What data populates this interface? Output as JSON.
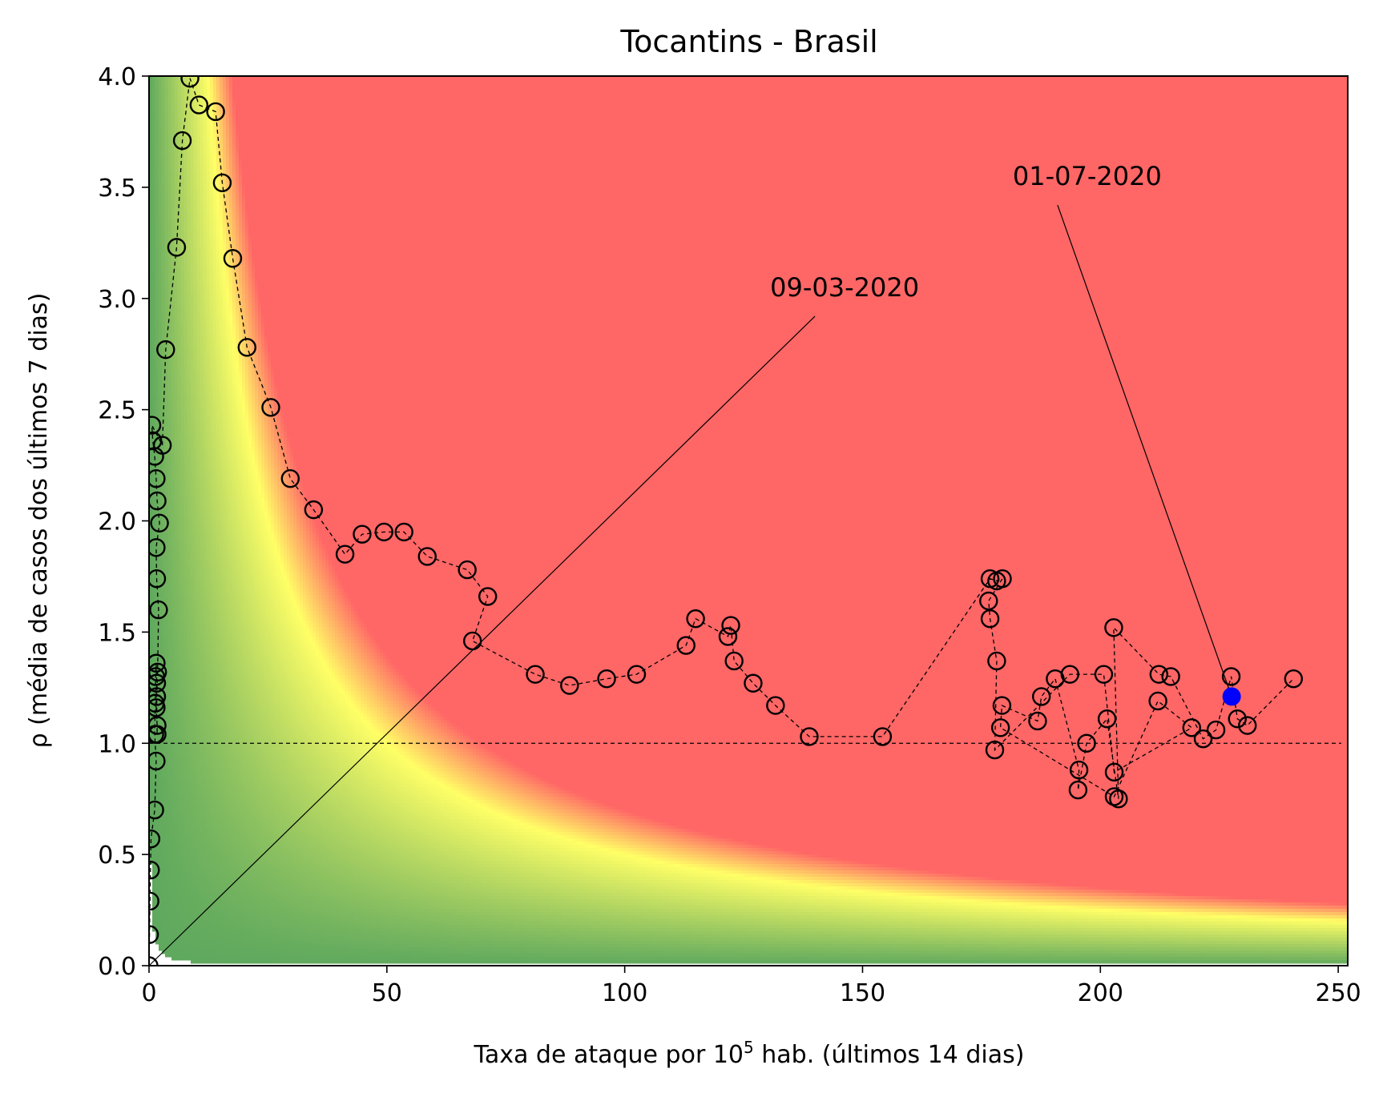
{
  "chart_data": {
    "type": "scatter",
    "title": "Tocantins - Brasil",
    "xlabel_prefix": "Taxa de ataque por 10",
    "xlabel_sup": "5",
    "xlabel_suffix": " hab. (últimos 14 dias)",
    "ylabel": "ρ (média de casos dos últimos 7 dias)",
    "xlim": [
      0,
      252
    ],
    "ylim": [
      0,
      4
    ],
    "xticks": [
      0,
      50,
      100,
      150,
      200,
      250
    ],
    "yticks": [
      0.0,
      0.5,
      1.0,
      1.5,
      2.0,
      2.5,
      3.0,
      3.5,
      4.0
    ],
    "xtick_labels": [
      "0",
      "50",
      "100",
      "150",
      "200",
      "250"
    ],
    "ytick_labels": [
      "0.0",
      "0.5",
      "1.0",
      "1.5",
      "2.0",
      "2.5",
      "3.0",
      "3.5",
      "4.0"
    ],
    "reference_line_y": 1.0,
    "background": {
      "description": "risk gradient green-yellow-red by attack rate x rho",
      "colors": {
        "low": "#5ea85e",
        "mid": "#ffff66",
        "high": "#ff6666"
      }
    },
    "series": [
      {
        "marker": "open-circle",
        "line": "dashed",
        "color": "#000000",
        "points": [
          [
            0.0,
            0.0
          ],
          [
            0.1,
            0.14
          ],
          [
            0.2,
            0.29
          ],
          [
            0.3,
            0.43
          ],
          [
            0.4,
            0.57
          ],
          [
            1.2,
            0.7
          ],
          [
            1.5,
            0.92
          ],
          [
            1.2,
            1.04
          ],
          [
            1.3,
            1.18
          ],
          [
            1.4,
            1.3
          ],
          [
            1.5,
            1.36
          ],
          [
            1.6,
            1.27
          ],
          [
            1.5,
            1.16
          ],
          [
            1.7,
            1.08
          ],
          [
            1.7,
            1.04
          ],
          [
            1.6,
            1.21
          ],
          [
            1.8,
            1.32
          ],
          [
            2.0,
            1.6
          ],
          [
            1.6,
            1.74
          ],
          [
            1.5,
            1.88
          ],
          [
            2.2,
            1.99
          ],
          [
            1.7,
            2.09
          ],
          [
            1.5,
            2.19
          ],
          [
            1.2,
            2.29
          ],
          [
            0.8,
            2.36
          ],
          [
            0.6,
            2.43
          ],
          [
            2.8,
            2.34
          ],
          [
            3.5,
            2.77
          ],
          [
            5.8,
            3.23
          ],
          [
            7.0,
            3.71
          ],
          [
            8.6,
            3.99
          ],
          [
            10.5,
            3.87
          ],
          [
            14.0,
            3.84
          ],
          [
            15.4,
            3.52
          ],
          [
            17.6,
            3.18
          ],
          [
            20.6,
            2.78
          ],
          [
            25.6,
            2.51
          ],
          [
            29.7,
            2.19
          ],
          [
            34.6,
            2.05
          ],
          [
            41.2,
            1.85
          ],
          [
            44.8,
            1.94
          ],
          [
            49.4,
            1.95
          ],
          [
            53.6,
            1.95
          ],
          [
            58.5,
            1.84
          ],
          [
            66.9,
            1.78
          ],
          [
            71.2,
            1.66
          ],
          [
            68.0,
            1.46
          ],
          [
            81.2,
            1.31
          ],
          [
            88.4,
            1.26
          ],
          [
            96.2,
            1.29
          ],
          [
            102.5,
            1.31
          ],
          [
            112.9,
            1.44
          ],
          [
            114.9,
            1.56
          ],
          [
            121.7,
            1.48
          ],
          [
            122.3,
            1.53
          ],
          [
            123.0,
            1.37
          ],
          [
            127.0,
            1.27
          ],
          [
            131.7,
            1.17
          ],
          [
            138.8,
            1.03
          ],
          [
            154.2,
            1.03
          ],
          [
            176.8,
            1.74
          ],
          [
            178.2,
            1.73
          ],
          [
            179.4,
            1.74
          ],
          [
            176.5,
            1.64
          ],
          [
            176.8,
            1.56
          ],
          [
            178.2,
            1.37
          ],
          [
            177.8,
            0.97
          ],
          [
            179.0,
            1.07
          ],
          [
            179.3,
            1.17
          ],
          [
            186.8,
            1.1
          ],
          [
            187.6,
            1.21
          ],
          [
            190.5,
            1.29
          ],
          [
            193.6,
            1.31
          ],
          [
            195.5,
            0.88
          ],
          [
            195.3,
            0.79
          ],
          [
            197.1,
            1.0
          ],
          [
            200.7,
            1.31
          ],
          [
            201.4,
            1.11
          ],
          [
            202.9,
            0.87
          ],
          [
            202.9,
            0.76
          ],
          [
            203.8,
            0.75
          ],
          [
            202.8,
            1.52
          ],
          [
            212.1,
            1.19
          ],
          [
            212.3,
            1.31
          ],
          [
            214.8,
            1.3
          ],
          [
            219.2,
            1.07
          ],
          [
            221.6,
            1.02
          ],
          [
            224.3,
            1.06
          ],
          [
            227.5,
            1.3
          ],
          [
            228.8,
            1.11
          ],
          [
            230.9,
            1.08
          ],
          [
            240.6,
            1.29
          ]
        ]
      }
    ],
    "path_order": [
      0,
      1,
      2,
      3,
      4,
      5,
      6,
      7,
      8,
      9,
      10,
      11,
      12,
      13,
      14,
      15,
      16,
      17,
      18,
      19,
      20,
      21,
      22,
      23,
      24,
      25,
      26,
      27,
      28,
      29,
      30,
      31,
      32,
      33,
      34,
      35,
      36,
      37,
      38,
      39,
      40,
      41,
      42,
      43,
      44,
      45,
      46,
      47,
      48,
      49,
      50,
      51,
      52,
      53,
      54,
      55,
      56,
      57,
      58,
      59,
      60,
      61,
      62,
      63,
      64,
      65,
      66,
      72,
      76,
      78,
      85,
      82,
      79,
      67,
      68,
      69,
      70,
      71,
      73,
      74,
      75,
      77,
      80,
      81,
      83,
      84,
      86,
      87,
      88,
      89,
      90,
      91
    ],
    "current_point": {
      "x": 227.6,
      "y": 1.21,
      "color": "#0000ff"
    },
    "annotations": [
      {
        "text": "09-03-2020",
        "arrow_from": [
          140,
          2.92
        ],
        "arrow_to": [
          0.0,
          0.0
        ]
      },
      {
        "text": "01-07-2020",
        "arrow_from": [
          191,
          3.42
        ],
        "arrow_to": [
          227.6,
          1.21
        ]
      }
    ]
  }
}
